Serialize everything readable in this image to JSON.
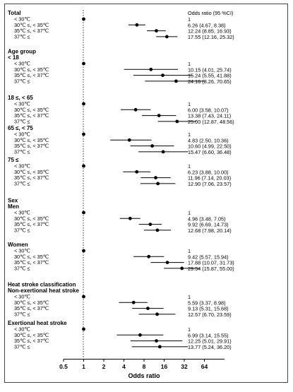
{
  "chart_data": {
    "type": "forest",
    "xlabel": "Odds ratio",
    "x_scale": "log2",
    "xlim": [
      0.5,
      64
    ],
    "xticks": [
      "0.5",
      "1",
      "2",
      "4",
      "8",
      "16",
      "32",
      "64"
    ],
    "reference_line": 1,
    "or_header": "Odds ratio (95 %CI)",
    "groups": [
      {
        "labels": [
          "Total"
        ],
        "rows": [
          {
            "label": "< 30℃",
            "or": 1,
            "lo": null,
            "hi": null,
            "text": "1"
          },
          {
            "label": "30℃ ≤, < 35℃",
            "or": 6.26,
            "lo": 4.67,
            "hi": 8.38,
            "text": "6.26 (4.67, 8.38)"
          },
          {
            "label": "35℃ ≤, < 37℃",
            "or": 12.24,
            "lo": 8.85,
            "hi": 16.93,
            "text": "12.24 (8.85, 16.93)"
          },
          {
            "label": "37℃ ≤",
            "or": 17.55,
            "lo": 12.16,
            "hi": 25.32,
            "text": "17.55 (12.16, 25.32)"
          }
        ]
      },
      {
        "labels": [
          "Age group",
          "< 18"
        ],
        "rows": [
          {
            "label": "< 30℃",
            "or": 1,
            "lo": null,
            "hi": null,
            "text": "1"
          },
          {
            "label": "30℃ ≤, < 35℃",
            "or": 10.15,
            "lo": 4.01,
            "hi": 25.74,
            "text": "10.15 (4.01, 25.74)"
          },
          {
            "label": "35℃ ≤, < 37℃",
            "or": 15.24,
            "lo": 5.55,
            "hi": 41.88,
            "text": "15.24 (5.55, 41.88)"
          },
          {
            "label": "37℃ ≤",
            "or": 24.16,
            "lo": 8.26,
            "hi": 70.65,
            "text": "24.16 (8.26, 70.65)"
          }
        ]
      },
      {
        "labels": [
          "18 ≤, < 65"
        ],
        "rows": [
          {
            "label": "< 30℃",
            "or": 1,
            "lo": null,
            "hi": null,
            "text": "1"
          },
          {
            "label": "30℃ ≤, < 35℃",
            "or": 6.0,
            "lo": 3.58,
            "hi": 10.07,
            "text": "6.00 (3.58, 10.07)"
          },
          {
            "label": "35℃ ≤, < 37℃",
            "or": 13.38,
            "lo": 7.43,
            "hi": 24.11,
            "text": "13.38 (7.43, 24.11)"
          },
          {
            "label": "37℃ ≤",
            "or": 25.0,
            "lo": 12.87,
            "hi": 48.56,
            "text": "25.00 (12.87, 48.56)"
          }
        ]
      },
      {
        "labels": [
          "65 ≤, < 75"
        ],
        "rows": [
          {
            "label": "< 30℃",
            "or": 1,
            "lo": null,
            "hi": null,
            "text": "1"
          },
          {
            "label": "30℃ ≤, < 35℃",
            "or": 4.83,
            "lo": 2.5,
            "hi": 10.36,
            "text": "4.83 (2.50, 10.36)"
          },
          {
            "label": "35℃ ≤, < 37℃",
            "or": 10.6,
            "lo": 4.99,
            "hi": 22.5,
            "text": "10.60 (4.99, 22.50)"
          },
          {
            "label": "37℃ ≤",
            "or": 15.47,
            "lo": 6.6,
            "hi": 36.48,
            "text": "15.47 (6.60, 36.48)"
          }
        ]
      },
      {
        "labels": [
          "75 ≤"
        ],
        "rows": [
          {
            "label": "< 30℃",
            "or": 1,
            "lo": null,
            "hi": null,
            "text": "1"
          },
          {
            "label": "30℃ ≤, < 35℃",
            "or": 6.23,
            "lo": 3.88,
            "hi": 10.0,
            "text": "6.23 (3.88, 10.00)"
          },
          {
            "label": "35℃ ≤, < 37℃",
            "or": 11.96,
            "lo": 7.14,
            "hi": 20.03,
            "text": "11.96 (7.14, 20.03)"
          },
          {
            "label": "37℃ ≤",
            "or": 12.9,
            "lo": 7.06,
            "hi": 23.57,
            "text": "12.90 (7.06, 23.57)"
          }
        ]
      },
      {
        "labels": [
          "Sex",
          "Men"
        ],
        "rows": [
          {
            "label": "< 30℃",
            "or": 1,
            "lo": null,
            "hi": null,
            "text": "1"
          },
          {
            "label": "30℃ ≤, < 35℃",
            "or": 4.96,
            "lo": 3.48,
            "hi": 7.05,
            "text": "4.96 (3.48, 7.05)"
          },
          {
            "label": "35℃ ≤, < 37℃",
            "or": 9.92,
            "lo": 6.69,
            "hi": 14.73,
            "text": "9.92 (6.69, 14.73)"
          },
          {
            "label": "37℃ ≤",
            "or": 12.68,
            "lo": 7.98,
            "hi": 20.14,
            "text": "12.68 (7.98, 20.14)"
          }
        ]
      },
      {
        "labels": [
          "Women"
        ],
        "rows": [
          {
            "label": "< 30℃",
            "or": 1,
            "lo": null,
            "hi": null,
            "text": "1"
          },
          {
            "label": "30℃ ≤, < 35℃",
            "or": 9.42,
            "lo": 5.57,
            "hi": 15.94,
            "text": "9.42 (5.57, 15.94)"
          },
          {
            "label": "35℃ ≤, < 37℃",
            "or": 17.88,
            "lo": 10.07,
            "hi": 31.73,
            "text": "17.88 (10.07, 31.73)"
          },
          {
            "label": "37℃ ≤",
            "or": 29.54,
            "lo": 15.87,
            "hi": 55.0,
            "text": "29.54 (15.87, 55.00)"
          }
        ]
      },
      {
        "labels": [
          "Heat stroke classification",
          "Non-exertional heat stroke"
        ],
        "rows": [
          {
            "label": "< 30℃",
            "or": 1,
            "lo": null,
            "hi": null,
            "text": "1"
          },
          {
            "label": "30℃ ≤, < 35℃",
            "or": 5.59,
            "lo": 3.37,
            "hi": 8.98,
            "text": "5.59 (3.37, 8.98)"
          },
          {
            "label": "35℃ ≤, < 37℃",
            "or": 9.13,
            "lo": 5.31,
            "hi": 15.68,
            "text": "9.13 (5.31, 15.68)"
          },
          {
            "label": "37℃ ≤",
            "or": 12.57,
            "lo": 6.7,
            "hi": 23.59,
            "text": "12.57 (6.70, 23.59)"
          }
        ]
      },
      {
        "labels": [
          "Exertional heat stroke"
        ],
        "rows": [
          {
            "label": "< 30℃",
            "or": 1,
            "lo": null,
            "hi": null,
            "text": "1"
          },
          {
            "label": "30℃ ≤, < 35℃",
            "or": 6.99,
            "lo": 3.14,
            "hi": 15.55,
            "text": "6.99 (3.14, 15.55)"
          },
          {
            "label": "35℃ ≤, < 37℃",
            "or": 12.25,
            "lo": 5.01,
            "hi": 29.91,
            "text": "12.25 (5.01, 29.91)"
          },
          {
            "label": "37℃ ≤",
            "or": 13.77,
            "lo": 5.24,
            "hi": 36.2,
            "text": "13.77 (5.24, 36.20)"
          }
        ]
      }
    ]
  }
}
